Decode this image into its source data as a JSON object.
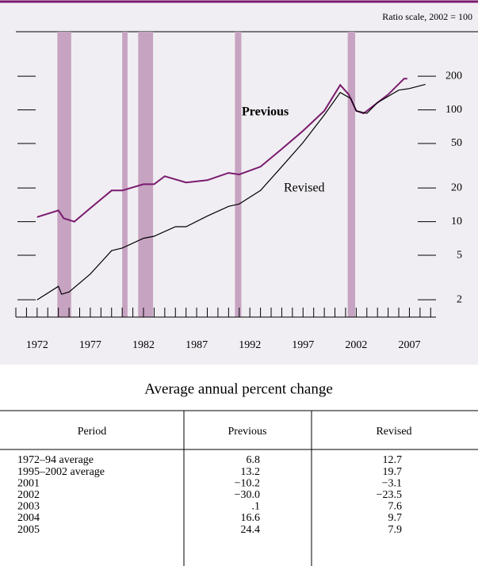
{
  "chart_data": {
    "type": "line",
    "scale_note": "Ratio scale, 2002 = 100",
    "log_scale": true,
    "xlim": [
      1970,
      2009.5
    ],
    "xticks": [
      1972,
      1977,
      1982,
      1987,
      1992,
      1997,
      2002,
      2007
    ],
    "xticks_minor": [
      1970,
      1971,
      1972,
      1973,
      1974,
      1975,
      1976,
      1977,
      1978,
      1979,
      1980,
      1981,
      1982,
      1983,
      1984,
      1985,
      1986,
      1987,
      1988,
      1989,
      1990,
      1991,
      1992,
      1993,
      1994,
      1995,
      1996,
      1997,
      1998,
      1999,
      2000,
      2001,
      2002,
      2003,
      2004,
      2005,
      2006,
      2007,
      2008,
      2009
    ],
    "ylim": [
      1.4,
      500
    ],
    "yticks": [
      2,
      5,
      10,
      20,
      50,
      100,
      200
    ],
    "recessions": [
      [
        1973.9,
        1975.2
      ],
      [
        1980.0,
        1980.5
      ],
      [
        1981.5,
        1982.9
      ],
      [
        1990.6,
        1991.2
      ],
      [
        2001.2,
        2001.9
      ]
    ],
    "recession_color": "#c7a3c2",
    "series": [
      {
        "name": "Previous",
        "color": "#7a1a6e",
        "x": [
          1972,
          1974,
          1974.5,
          1975.5,
          1977,
          1979,
          1980,
          1982,
          1983,
          1984,
          1986,
          1988,
          1990,
          1991,
          1993,
          1995,
          1997,
          1999,
          2000.5,
          2001.3,
          2002,
          2002.7,
          2004,
          2005,
          2006.5,
          2006.8
        ],
        "values": [
          11.0,
          12.6,
          10.7,
          10.0,
          13.2,
          19,
          19,
          21.6,
          21.6,
          25.5,
          22.4,
          23.5,
          27.3,
          26.4,
          31,
          44.6,
          65,
          98,
          167,
          137,
          98,
          93,
          116,
          137,
          190,
          190
        ]
      },
      {
        "name": "Revised",
        "color": "#000000",
        "x": [
          1972,
          1974,
          1974.3,
          1975,
          1977,
          1979,
          1980,
          1982,
          1983,
          1985,
          1986,
          1988,
          1990,
          1991,
          1993,
          1995,
          1997,
          1999,
          2000.5,
          2001.5,
          2002,
          2003,
          2004,
          2005,
          2006,
          2007,
          2008.5
        ],
        "values": [
          2,
          2.64,
          2.24,
          2.35,
          3.4,
          5.5,
          5.8,
          7.1,
          7.4,
          9,
          9,
          11.2,
          13.7,
          14.4,
          19,
          31,
          51,
          90,
          143,
          126,
          98,
          93,
          116,
          132,
          150,
          155,
          169
        ]
      }
    ]
  },
  "table": {
    "title": "Average annual percent change",
    "header": [
      "Period",
      "Previous",
      "Revised"
    ],
    "rows": [
      [
        "1972–94 average",
        "6.8",
        "12.7"
      ],
      [
        "1995–2002 average",
        "13.2",
        "19.7"
      ],
      [
        "2001",
        "−10.2",
        "−3.1"
      ],
      [
        "2002",
        "−30.0",
        "−23.5"
      ],
      [
        "2003",
        ".1",
        "7.6"
      ],
      [
        "2004",
        "16.6",
        "9.7"
      ],
      [
        "2005",
        "24.4",
        "7.9"
      ]
    ]
  }
}
